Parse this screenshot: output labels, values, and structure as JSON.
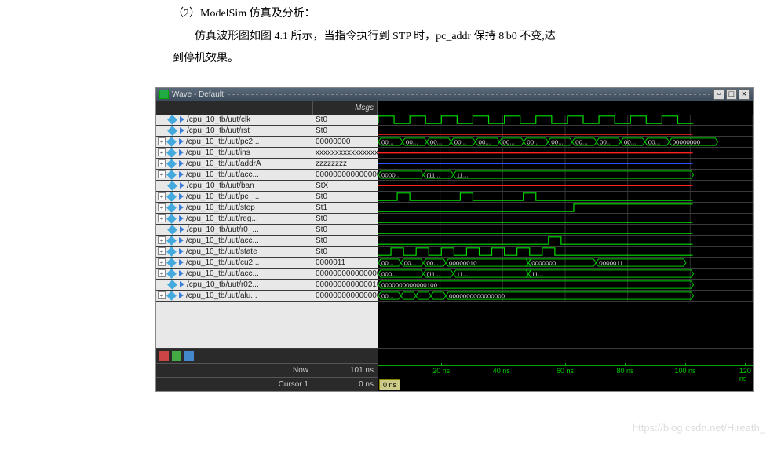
{
  "doc": {
    "line1": "（2）ModelSim 仿真及分析：",
    "line2": "仿真波形图如图 4.1 所示，当指令执行到 STP 时，pc_addr 保持 8'b0 不变,达",
    "line3": "到停机效果。"
  },
  "window": {
    "title": "Wave - Default"
  },
  "header": {
    "msgs": "Msgs"
  },
  "signals": [
    {
      "expand": false,
      "name": "/cpu_10_tb/uut/clk",
      "value": "St0",
      "type": "clock"
    },
    {
      "expand": false,
      "name": "/cpu_10_tb/uut/rst",
      "value": "St0",
      "type": "line-low-red"
    },
    {
      "expand": true,
      "name": "/cpu_10_tb/uut/pc2...",
      "value": "00000000",
      "type": "bus-pc"
    },
    {
      "expand": true,
      "name": "/cpu_10_tb/uut/ins",
      "value": "xxxxxxxxxxxxxxxx",
      "type": "bus-red"
    },
    {
      "expand": true,
      "name": "/cpu_10_tb/uut/addrA",
      "value": "zzzzzzzz",
      "type": "line-blue"
    },
    {
      "expand": true,
      "name": "/cpu_10_tb/uut/acc...",
      "value": "0000000000000000",
      "type": "bus-acc"
    },
    {
      "expand": false,
      "name": "/cpu_10_tb/uut/ban",
      "value": "StX",
      "type": "line-red"
    },
    {
      "expand": true,
      "name": "/cpu_10_tb/uut/pc_...",
      "value": "St0",
      "type": "pc-step"
    },
    {
      "expand": true,
      "name": "/cpu_10_tb/uut/stop",
      "value": "St1",
      "type": "stop"
    },
    {
      "expand": true,
      "name": "/cpu_10_tb/uut/reg...",
      "value": "St0",
      "type": "line-low"
    },
    {
      "expand": false,
      "name": "/cpu_10_tb/uut/r0_...",
      "value": "St0",
      "type": "line-low"
    },
    {
      "expand": true,
      "name": "/cpu_10_tb/uut/acc...",
      "value": "St0",
      "type": "acc-pulse"
    },
    {
      "expand": true,
      "name": "/cpu_10_tb/uut/state",
      "value": "St0",
      "type": "state"
    },
    {
      "expand": true,
      "name": "/cpu_10_tb/uut/cu2...",
      "value": "0000011",
      "type": "bus-cu"
    },
    {
      "expand": true,
      "name": "/cpu_10_tb/uut/acc...",
      "value": "0000000000000000",
      "type": "bus-acc2"
    },
    {
      "expand": false,
      "name": "/cpu_10_tb/uut/r02...",
      "value": "0000000000000100",
      "type": "bus-r02"
    },
    {
      "expand": true,
      "name": "/cpu_10_tb/uut/alu...",
      "value": "0000000000000000",
      "type": "bus-alu"
    }
  ],
  "footer": {
    "now_label": "Now",
    "now_value": "101 ns",
    "cursor_label": "Cursor 1",
    "cursor_value": "0 ns",
    "cursor_box": "0 ns"
  },
  "axis": {
    "ticks": [
      {
        "pos": 17,
        "label": "20 ns"
      },
      {
        "pos": 33,
        "label": "40 ns"
      },
      {
        "pos": 50,
        "label": "60 ns"
      },
      {
        "pos": 66,
        "label": "80 ns"
      },
      {
        "pos": 82,
        "label": "100 ns"
      },
      {
        "pos": 98,
        "label": "120 ns"
      }
    ]
  },
  "bus_text": {
    "pc": [
      "00...",
      "00...",
      "00...",
      "00...",
      "00...",
      "00...",
      "00...",
      "00...",
      "00...",
      "00...",
      "00...",
      "00...",
      "00000000"
    ],
    "acc1": [
      "0000...",
      "(11...",
      "11..."
    ],
    "cu": [
      "00...",
      "00...",
      "00...",
      "00000010",
      "",
      "0000000",
      "0000011"
    ],
    "acc2": [
      "000...",
      "(11...",
      "11...",
      "",
      "11..."
    ],
    "r02": [
      "0000000000000100"
    ],
    "alu": [
      "00...",
      "",
      "",
      "",
      "0000000000000000"
    ]
  },
  "colors": {
    "bg": "#000000",
    "grid": "#303030",
    "green": "#00e000",
    "red": "#ff2020",
    "blue": "#3050ff",
    "bus": "#00d000",
    "axis": "#00b000"
  },
  "watermark": "https://blog.csdn.net/Hireath_"
}
